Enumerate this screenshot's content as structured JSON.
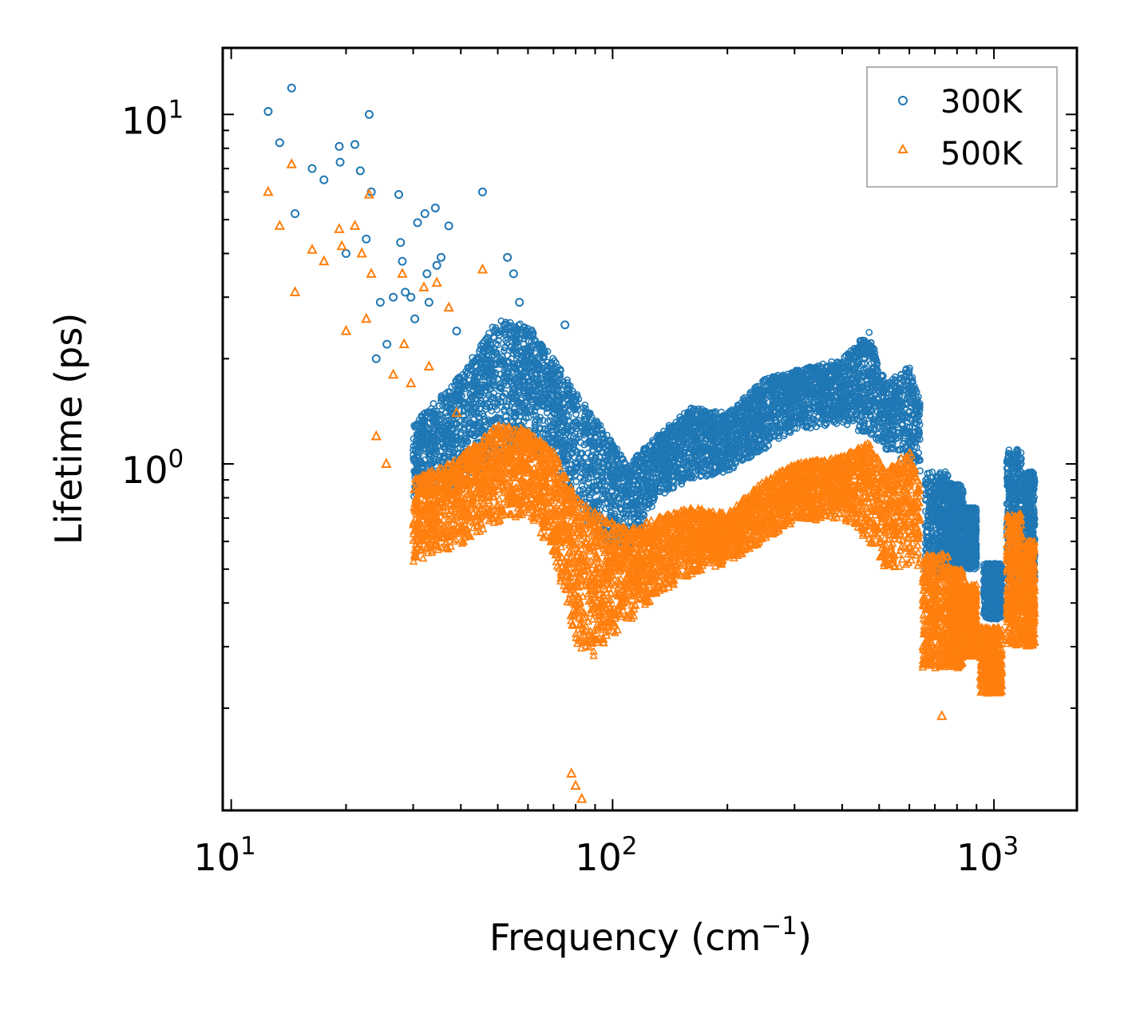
{
  "chart_data": {
    "type": "scatter",
    "title": "",
    "xlabel": "Frequency (cm",
    "xlabel_sup": "−1",
    "xlabel_end": ")",
    "ylabel": "Lifetime (ps)",
    "xscale": "log",
    "yscale": "log",
    "xlim": [
      9.5,
      1650
    ],
    "ylim": [
      0.102,
      15.5
    ],
    "x_ticks": [
      {
        "value": 10,
        "base": "10",
        "exp": "1"
      },
      {
        "value": 100,
        "base": "10",
        "exp": "2"
      },
      {
        "value": 1000,
        "base": "10",
        "exp": "3"
      }
    ],
    "y_ticks": [
      {
        "value": 1,
        "base": "10",
        "exp": "0"
      },
      {
        "value": 10,
        "base": "10",
        "exp": "1"
      }
    ],
    "legend_position": "top-right",
    "series": [
      {
        "name": "300K",
        "marker": "circle",
        "color": "#1f77b4",
        "points": [
          [
            12.5,
            10.2
          ],
          [
            13.4,
            8.3
          ],
          [
            14.4,
            11.9
          ],
          [
            14.7,
            5.2
          ],
          [
            16.3,
            7.0
          ],
          [
            17.5,
            6.5
          ],
          [
            19.2,
            8.1
          ],
          [
            19.3,
            7.3
          ],
          [
            20.0,
            4.0
          ],
          [
            21.1,
            8.2
          ],
          [
            21.8,
            6.9
          ],
          [
            22.6,
            4.4
          ],
          [
            23.0,
            10.0
          ],
          [
            23.3,
            6.0
          ],
          [
            24.0,
            2.0
          ],
          [
            24.6,
            2.9
          ],
          [
            25.6,
            2.2
          ],
          [
            26.6,
            3.0
          ],
          [
            27.5,
            5.9
          ],
          [
            27.8,
            4.3
          ],
          [
            28.1,
            3.8
          ],
          [
            28.6,
            3.1
          ],
          [
            29.6,
            3.0
          ],
          [
            30.3,
            2.6
          ],
          [
            30.8,
            4.9
          ],
          [
            32.2,
            5.2
          ],
          [
            32.6,
            3.5
          ],
          [
            33.0,
            2.9
          ],
          [
            34.3,
            5.4
          ],
          [
            34.6,
            3.7
          ],
          [
            35.5,
            3.9
          ],
          [
            37.2,
            4.8
          ],
          [
            39.0,
            2.4
          ],
          [
            45.6,
            6.0
          ],
          [
            53.0,
            3.9
          ],
          [
            55.0,
            3.5
          ],
          [
            57.0,
            2.9
          ],
          [
            75.0,
            2.5
          ]
        ]
      },
      {
        "name": "500K",
        "marker": "triangle",
        "color": "#ff7f0e",
        "points": [
          [
            12.5,
            6.0
          ],
          [
            13.4,
            4.8
          ],
          [
            14.4,
            7.2
          ],
          [
            14.7,
            3.1
          ],
          [
            16.3,
            4.1
          ],
          [
            17.5,
            3.8
          ],
          [
            19.2,
            4.7
          ],
          [
            19.5,
            4.2
          ],
          [
            20.0,
            2.4
          ],
          [
            21.1,
            4.8
          ],
          [
            22.0,
            4.0
          ],
          [
            22.6,
            2.6
          ],
          [
            23.0,
            5.9
          ],
          [
            23.3,
            3.5
          ],
          [
            24.0,
            1.2
          ],
          [
            25.5,
            1.0
          ],
          [
            26.6,
            1.8
          ],
          [
            28.1,
            3.5
          ],
          [
            28.4,
            2.2
          ],
          [
            29.6,
            1.7
          ],
          [
            32.0,
            3.2
          ],
          [
            33.0,
            1.9
          ],
          [
            34.6,
            3.3
          ],
          [
            37.2,
            2.8
          ],
          [
            39.0,
            1.4
          ],
          [
            45.6,
            3.6
          ],
          [
            78.0,
            0.13
          ],
          [
            80.0,
            0.12
          ],
          [
            83.0,
            0.11
          ],
          [
            145.0,
            0.54
          ],
          [
            730.0,
            0.19
          ]
        ]
      }
    ]
  }
}
